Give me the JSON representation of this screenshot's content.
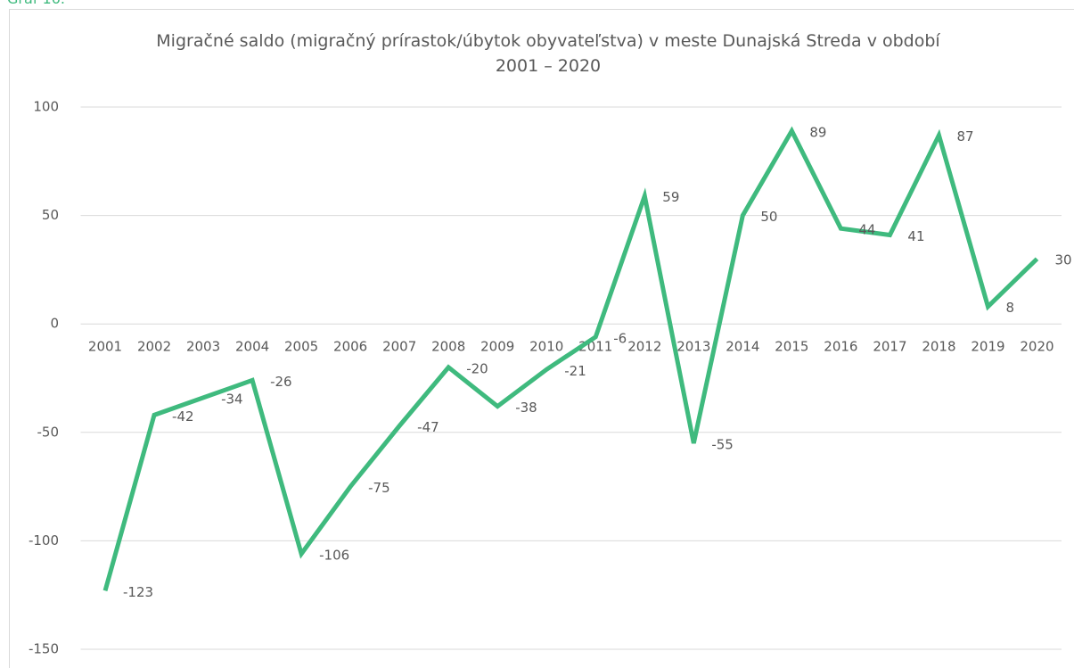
{
  "caption": "Graf 16.",
  "chart_data": {
    "type": "line",
    "title": "Migračné saldo (migračný prírastok/úbytok obyvateľstva) v meste Dunajská Streda v období 2001 – 2020",
    "categories": [
      "2001",
      "2002",
      "2003",
      "2004",
      "2005",
      "2006",
      "2007",
      "2008",
      "2009",
      "2010",
      "2011",
      "2012",
      "2013",
      "2014",
      "2015",
      "2016",
      "2017",
      "2018",
      "2019",
      "2020"
    ],
    "values": [
      -123,
      -42,
      -34,
      -26,
      -106,
      -75,
      -47,
      -20,
      -38,
      -21,
      -6,
      59,
      -55,
      50,
      89,
      44,
      41,
      87,
      8,
      30
    ],
    "color": "#3fba7e",
    "ylim": [
      -150,
      100
    ],
    "yticks": [
      -150,
      -100,
      -50,
      0,
      50,
      100
    ],
    "grid": true
  }
}
